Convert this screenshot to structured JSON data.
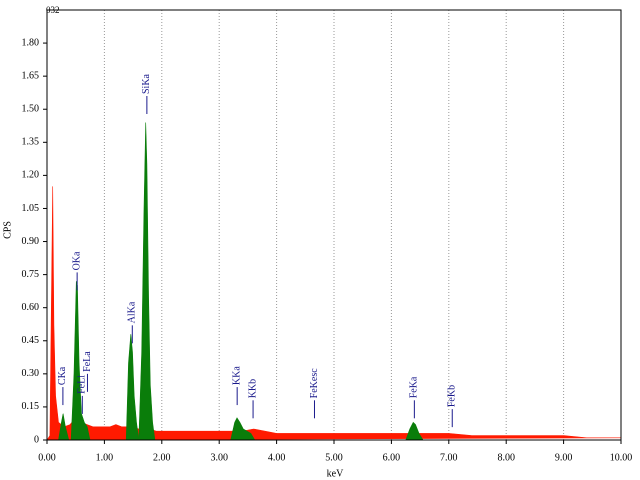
{
  "chart_data": {
    "type": "area",
    "title": "032",
    "x_label": "keV",
    "y_label": "CPS",
    "xlim": [
      0,
      10
    ],
    "ylim": [
      0,
      1.95
    ],
    "xticks": [
      {
        "value": 0,
        "label": "0.00"
      },
      {
        "value": 1,
        "label": "1.00"
      },
      {
        "value": 2,
        "label": "2.00"
      },
      {
        "value": 3,
        "label": "3.00"
      },
      {
        "value": 4,
        "label": "4.00"
      },
      {
        "value": 5,
        "label": "5.00"
      },
      {
        "value": 6,
        "label": "6.00"
      },
      {
        "value": 7,
        "label": "7.00"
      },
      {
        "value": 8,
        "label": "8.00"
      },
      {
        "value": 9,
        "label": "9.00"
      },
      {
        "value": 10,
        "label": "10.00"
      }
    ],
    "yticks": [
      0,
      0.15,
      {
        "value": 0.3,
        "label": "0.30"
      },
      0.45,
      {
        "value": 0.6,
        "label": "0.60"
      },
      0.75,
      {
        "value": 0.9,
        "label": "0.90"
      },
      1.05,
      {
        "value": 1.2,
        "label": "1.20"
      },
      1.35,
      {
        "value": 1.5,
        "label": "1.50"
      },
      1.65,
      {
        "value": 1.8,
        "label": "1.80"
      }
    ],
    "grid": true,
    "series": [
      {
        "color": "#ff1a00",
        "x": [
          0,
          0.05,
          0.1,
          0.12,
          0.15,
          0.2,
          0.3,
          0.4,
          0.5,
          0.6,
          0.7,
          0.8,
          0.9,
          1.0,
          1.1,
          1.2,
          1.3,
          1.4,
          1.5,
          1.6,
          1.7,
          1.8,
          1.9,
          2.0,
          2.2,
          2.4,
          2.6,
          2.8,
          3.0,
          3.2,
          3.4,
          3.6,
          3.8,
          4.0,
          4.2,
          4.4,
          4.6,
          4.8,
          5.0,
          5.4,
          5.8,
          6.2,
          6.6,
          7.0,
          7.4,
          7.8,
          8.2,
          8.6,
          9.0,
          9.4,
          9.8,
          10.0
        ],
        "values": [
          0,
          0.02,
          1.15,
          0.52,
          0.2,
          0.08,
          0.06,
          0.07,
          0.1,
          0.08,
          0.07,
          0.06,
          0.06,
          0.06,
          0.06,
          0.07,
          0.06,
          0.06,
          0.06,
          0.05,
          0.05,
          0.05,
          0.04,
          0.04,
          0.04,
          0.04,
          0.04,
          0.04,
          0.04,
          0.04,
          0.04,
          0.05,
          0.04,
          0.03,
          0.03,
          0.03,
          0.03,
          0.03,
          0.03,
          0.03,
          0.03,
          0.03,
          0.03,
          0.03,
          0.02,
          0.02,
          0.02,
          0.02,
          0.02,
          0.01,
          0.01,
          0.01
        ]
      },
      {
        "color": "#0a7d0a",
        "x": [
          0.2,
          0.25,
          0.28,
          0.32,
          0.38
        ],
        "values": [
          0,
          0.08,
          0.12,
          0.06,
          0
        ]
      },
      {
        "color": "#0a7d0a",
        "x": [
          0.42,
          0.47,
          0.51,
          0.53,
          0.56,
          0.6,
          0.65,
          0.7,
          0.75
        ],
        "values": [
          0,
          0.3,
          0.72,
          0.7,
          0.35,
          0.12,
          0.08,
          0.06,
          0
        ]
      },
      {
        "color": "#0a7d0a",
        "x": [
          1.38,
          1.42,
          1.46,
          1.49,
          1.52,
          1.56,
          1.6
        ],
        "values": [
          0,
          0.35,
          0.48,
          0.4,
          0.2,
          0.08,
          0
        ]
      },
      {
        "color": "#0a7d0a",
        "x": [
          1.6,
          1.65,
          1.69,
          1.72,
          1.74,
          1.77,
          1.8,
          1.84,
          1.88
        ],
        "values": [
          0,
          0.4,
          1.05,
          1.44,
          1.25,
          0.65,
          0.25,
          0.08,
          0
        ]
      },
      {
        "color": "#0a7d0a",
        "x": [
          3.2,
          3.27,
          3.31,
          3.36,
          3.42,
          3.55,
          3.62
        ],
        "values": [
          0,
          0.08,
          0.1,
          0.08,
          0.05,
          0.03,
          0
        ]
      },
      {
        "color": "#0a7d0a",
        "x": [
          6.25,
          6.32,
          6.38,
          6.42,
          6.48,
          6.55
        ],
        "values": [
          0,
          0.05,
          0.08,
          0.07,
          0.03,
          0
        ]
      }
    ],
    "annotations": [
      {
        "text": "CKa",
        "x": 0.277,
        "y": 0.24
      },
      {
        "text": "OKa",
        "x": 0.525,
        "y": 0.76
      },
      {
        "text": "FeLl",
        "x": 0.615,
        "y": 0.2
      },
      {
        "text": "FeLa",
        "x": 0.705,
        "y": 0.3
      },
      {
        "text": "AlKa",
        "x": 1.486,
        "y": 0.52
      },
      {
        "text": "SiKa",
        "x": 1.74,
        "y": 1.56
      },
      {
        "text": "KKa",
        "x": 3.313,
        "y": 0.24
      },
      {
        "text": "KKb",
        "x": 3.59,
        "y": 0.18
      },
      {
        "text": "FeKesc",
        "x": 4.66,
        "y": 0.18
      },
      {
        "text": "FeKa",
        "x": 6.4,
        "y": 0.18
      },
      {
        "text": "FeKb",
        "x": 7.06,
        "y": 0.14
      }
    ]
  }
}
